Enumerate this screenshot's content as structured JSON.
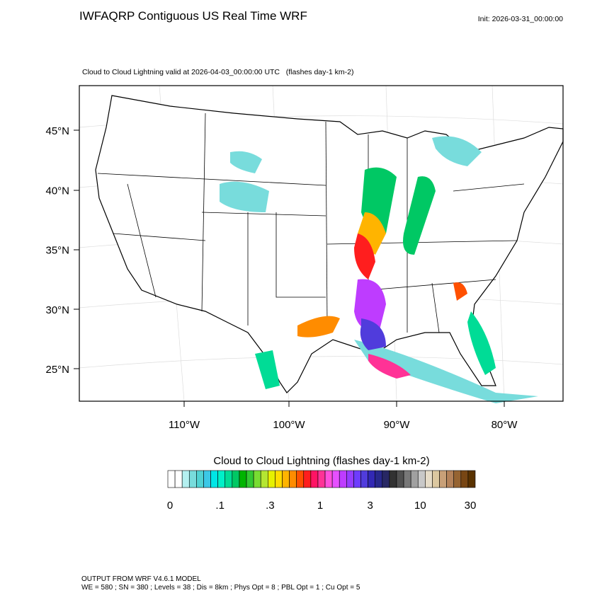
{
  "header": {
    "title": "IWFAQRP Contiguous US Real Time WRF",
    "init": "Init: 2026-03-31_00:00:00"
  },
  "map": {
    "subtitle": "Cloud to Cloud Lightning valid at 2026-04-03_00:00:00 UTC   (flashes day-1 km-2)",
    "lat_labels": [
      "45°N",
      "40°N",
      "35°N",
      "30°N",
      "25°N"
    ],
    "lon_labels": [
      "110°W",
      "100°W",
      "90°W",
      "80°W"
    ]
  },
  "colorbar": {
    "title": "Cloud to Cloud Lightning  (flashes day-1 km-2)",
    "labels": [
      "0",
      ".1",
      ".3",
      "1",
      "3",
      "10",
      "30"
    ],
    "colors": [
      "#ffffff",
      "#ffffff",
      "#b4f0f0",
      "#78dcdc",
      "#50d2d2",
      "#3cc8e6",
      "#00e6e6",
      "#00f0c8",
      "#00dc96",
      "#00c864",
      "#00b400",
      "#32c832",
      "#78dc32",
      "#b4e632",
      "#e6f000",
      "#ffdc00",
      "#ffb400",
      "#ff8c00",
      "#ff5000",
      "#ff1e1e",
      "#ff1464",
      "#ff3296",
      "#ff50dc",
      "#e650ff",
      "#be3cff",
      "#963cff",
      "#6e3cff",
      "#503cdc",
      "#3228b4",
      "#28288c",
      "#282864",
      "#323232",
      "#505050",
      "#787878",
      "#a0a0a0",
      "#c8c8c8",
      "#e6dcc8",
      "#dcc8a0",
      "#c8a078",
      "#b4825a",
      "#966432",
      "#784614",
      "#5a3200"
    ]
  },
  "footer": {
    "line1": "OUTPUT FROM WRF V4.6.1 MODEL",
    "line2": "WE = 580 ; SN = 380 ; Levels = 38 ; Dis = 8km ; Phys Opt = 8 ; PBL Opt = 1 ; Cu Opt = 5"
  }
}
